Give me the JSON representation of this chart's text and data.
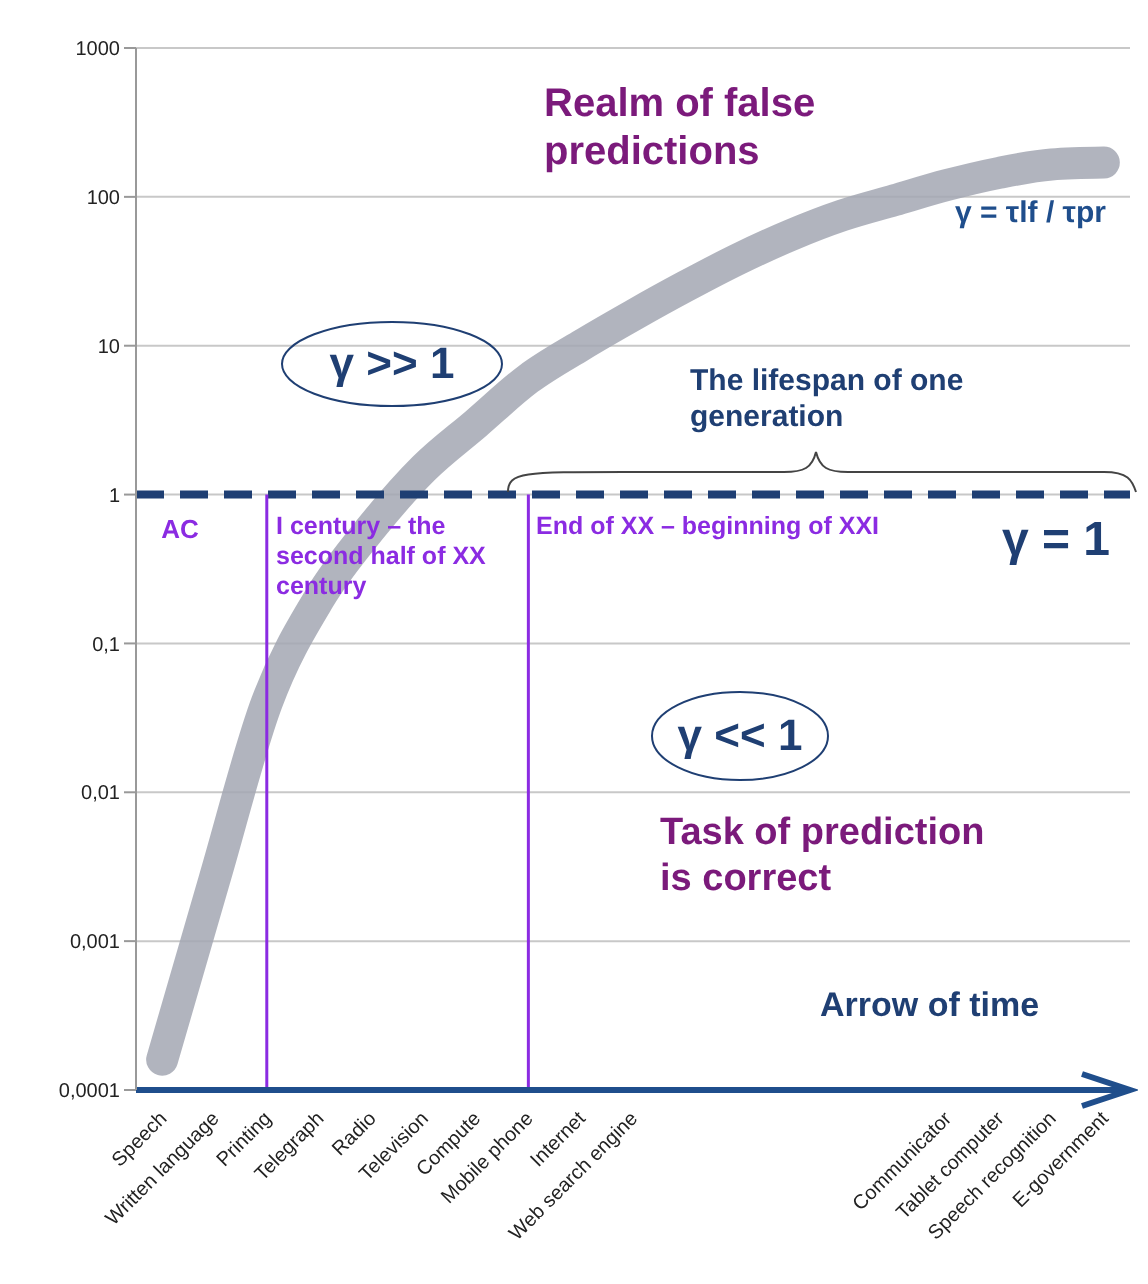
{
  "chart_data": {
    "type": "line",
    "log": "y",
    "grid": "y",
    "categories": [
      "Speech",
      "Written language",
      "Printing",
      "Telegraph",
      "Radio",
      "Television",
      "Compute",
      "Mobile phone",
      "Internet",
      "Web search engine",
      null,
      null,
      null,
      null,
      null,
      "Communicator",
      "Tablet computer",
      "Speech recognition",
      "E-government"
    ],
    "series": [
      {
        "color": "#a3a7b3",
        "values": [
          0.00016,
          0.0026,
          0.04,
          0.2,
          0.6,
          1.5,
          3,
          6,
          10,
          16,
          25,
          38,
          55,
          75,
          95,
          120,
          145,
          165,
          170
        ]
      }
    ],
    "ylim": [
      0.0001,
      1000
    ],
    "yticks": [
      {
        "value": 0.0001,
        "label": "0,0001"
      },
      {
        "value": 0.001,
        "label": "0,001"
      },
      {
        "value": 0.01,
        "label": "0,01"
      },
      {
        "value": 0.1,
        "label": "0,1"
      },
      1,
      10,
      100,
      1000
    ],
    "ref_lines": [
      {
        "axis": "y",
        "value": 1,
        "label": "γ = 1",
        "color": "#1f3f73",
        "line_style": "dashed"
      },
      {
        "axis": "x",
        "value": "Printing",
        "color": "#8b2be2",
        "line_style": "solid"
      },
      {
        "axis": "x",
        "value": "Mobile phone",
        "color": "#8b2be2",
        "line_style": "solid"
      }
    ],
    "annotations": [
      "Realm of false predictions",
      "γ = τlf / τpr",
      "γ >> 1",
      "The lifespan of one generation",
      "AC",
      "I century – the second half of XX century",
      "End of XX – beginning of XXI",
      "γ << 1",
      "Task of prediction is correct",
      "Arrow of time"
    ]
  }
}
